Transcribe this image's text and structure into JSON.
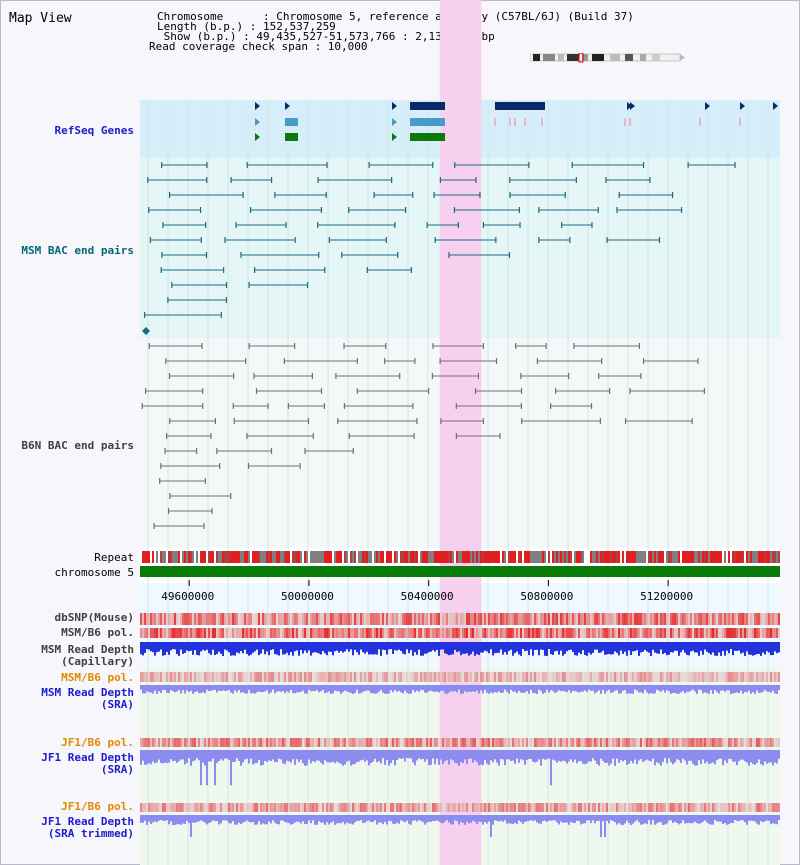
{
  "view_title": "Map View",
  "header": {
    "chromosome_line": "Chromosome      : Chromosome 5, reference assembly (C57BL/6J) (Build 37)",
    "length_line": "Length (b.p.) : 152,537,259",
    "show_line": " Show (b.p.) : 49,435,527-51,573,766 : 2,138,240 bp",
    "coverage_line": "Read coverage check span : 10,000"
  },
  "tracks": {
    "refseq_label": "RefSeq Genes",
    "msm_bac_label": "MSM BAC end pairs",
    "b6n_bac_label": "B6N BAC end pairs",
    "repeat_label": "Repeat",
    "chromosome_label": "chromosome 5",
    "dbsnp_label": "dbSNP(Mouse)",
    "msm_b6_pol_label": "MSM/B6 pol.",
    "msm_depth_cap_label_1": "MSM Read Depth",
    "msm_depth_cap_label_2": "(Capillary)",
    "msm_b6_pol_sra_label": "MSM/B6 pol.",
    "msm_depth_sra_label_1": "MSM Read Depth",
    "msm_depth_sra_label_2": "(SRA)",
    "jf1_pol_label": "JF1/B6 pol.",
    "jf1_depth_label_1": "JF1 Read Depth",
    "jf1_depth_label_2": "(SRA)",
    "jf1_pol_trim_label": "JF1/B6 pol.",
    "jf1_depth_trim_label_1": "JF1 Read Depth",
    "jf1_depth_trim_label_2": "(SRA trimmed)"
  },
  "axis": {
    "ticks": [
      "49600000",
      "50000000",
      "50400000",
      "50800000",
      "51200000"
    ],
    "tick_values": [
      49600000,
      50000000,
      50400000,
      50800000,
      51200000
    ],
    "view_start": 49435527,
    "view_end": 51573766
  },
  "highlight": {
    "start": 50437000,
    "end": 50576000
  },
  "colors": {
    "refseq_bg": "#d6eefa",
    "msm_bg": "#e4f6f6",
    "highlight": "#f8d0ef",
    "gene_dark": "#0a2a66",
    "gene_mid": "#4a9ac8",
    "gene_green": "#0a7a0a",
    "msm_bac": "#1a6a80",
    "b6n_bac": "#707070",
    "chromosome": "#0a7a0a",
    "depth_dark": "#2233dd",
    "depth_light": "#8c8cf0",
    "snp_red": "#e03030"
  }
}
